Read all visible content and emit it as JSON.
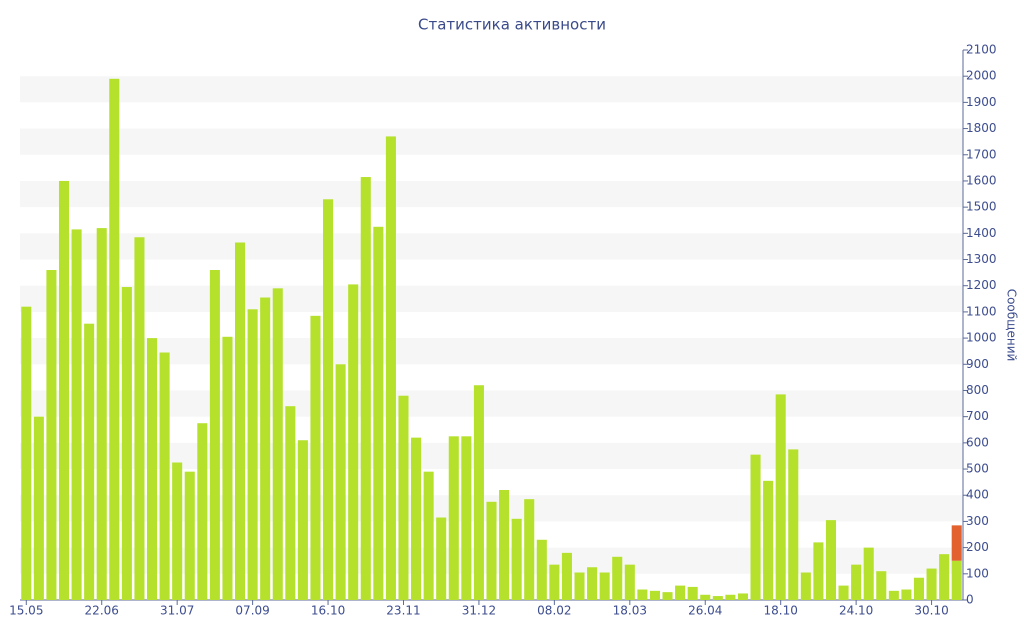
{
  "chart_data": {
    "type": "bar",
    "stacked": true,
    "title": "Статистика активности",
    "y_label": "Сообщений",
    "categories": [
      "15.05",
      null,
      null,
      null,
      null,
      null,
      "22.06",
      null,
      null,
      null,
      null,
      null,
      "31.07",
      null,
      null,
      null,
      null,
      null,
      "07.09",
      null,
      null,
      null,
      null,
      null,
      "16.10",
      null,
      null,
      null,
      null,
      null,
      "23.11",
      null,
      null,
      null,
      null,
      null,
      "31.12",
      null,
      null,
      null,
      null,
      null,
      "08.02",
      null,
      null,
      null,
      null,
      null,
      "18.03",
      null,
      null,
      null,
      null,
      null,
      "26.04",
      null,
      null,
      null,
      null,
      null,
      "18.10",
      null,
      null,
      null,
      null,
      null,
      "24.10",
      null,
      null,
      null,
      null,
      null,
      "30.10",
      null,
      null
    ],
    "series": [
      {
        "color": "#b5e12c",
        "values": [
          1120,
          700,
          1260,
          1600,
          1415,
          1055,
          1420,
          1990,
          1195,
          1385,
          1000,
          945,
          525,
          490,
          675,
          1260,
          1005,
          1365,
          1110,
          1155,
          1190,
          740,
          610,
          1085,
          1530,
          900,
          1205,
          1615,
          1425,
          1770,
          780,
          620,
          490,
          315,
          625,
          625,
          820,
          375,
          420,
          310,
          385,
          230,
          135,
          180,
          105,
          125,
          105,
          165,
          135,
          40,
          35,
          30,
          55,
          50,
          20,
          15,
          20,
          25,
          555,
          455,
          785,
          575,
          105,
          220,
          305,
          55,
          135,
          200,
          110,
          35,
          40,
          85,
          120,
          175,
          150
        ]
      },
      {
        "color": "#e2612e",
        "values": [
          null,
          null,
          null,
          null,
          null,
          null,
          null,
          null,
          null,
          null,
          null,
          null,
          null,
          null,
          null,
          null,
          null,
          null,
          null,
          null,
          null,
          null,
          null,
          null,
          null,
          null,
          null,
          null,
          null,
          null,
          null,
          null,
          null,
          null,
          null,
          null,
          null,
          null,
          null,
          null,
          null,
          null,
          null,
          null,
          null,
          null,
          null,
          null,
          null,
          null,
          null,
          null,
          null,
          null,
          null,
          null,
          null,
          null,
          null,
          null,
          null,
          null,
          null,
          null,
          null,
          null,
          null,
          null,
          null,
          null,
          null,
          null,
          null,
          null,
          135
        ]
      }
    ],
    "ylim": [
      0,
      2100
    ],
    "yticks": [
      0,
      100,
      200,
      300,
      400,
      500,
      600,
      700,
      800,
      900,
      1000,
      1100,
      1200,
      1300,
      1400,
      1500,
      1600,
      1700,
      1800,
      1900,
      2000,
      2100
    ],
    "grid": true,
    "y_axis_side": "right"
  }
}
